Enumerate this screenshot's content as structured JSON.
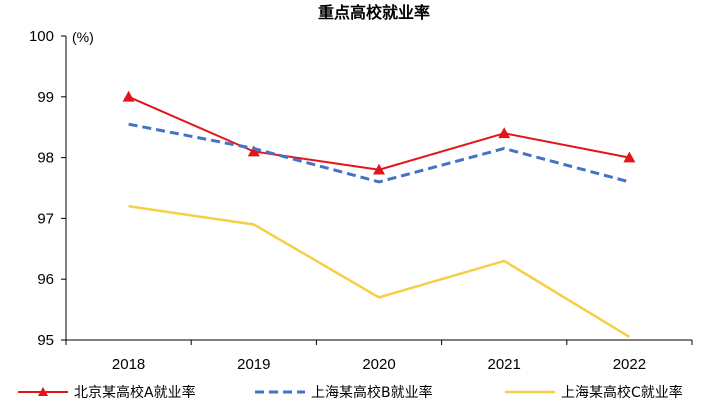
{
  "chart_data": {
    "type": "line",
    "title": "重点高校就业率",
    "ylabel": "(%)",
    "xlabel": "",
    "categories": [
      "2018",
      "2019",
      "2020",
      "2021",
      "2022"
    ],
    "ylim": [
      95,
      100
    ],
    "yticks": [
      95,
      96,
      97,
      98,
      99,
      100
    ],
    "grid": false,
    "legend_position": "bottom",
    "series": [
      {
        "name": "北京某高校A就业率",
        "values": [
          99.0,
          98.1,
          97.8,
          98.4,
          98.0
        ],
        "color": "#e3151a",
        "style": "solid-triangle-markers"
      },
      {
        "name": "上海某高校B就业率",
        "values": [
          98.55,
          98.15,
          97.6,
          98.15,
          97.6
        ],
        "color": "#4472c4",
        "style": "dashed"
      },
      {
        "name": "上海某高校C就业率",
        "values": [
          97.2,
          96.9,
          95.7,
          96.3,
          95.05
        ],
        "color": "#f5cf45",
        "style": "solid"
      }
    ]
  }
}
